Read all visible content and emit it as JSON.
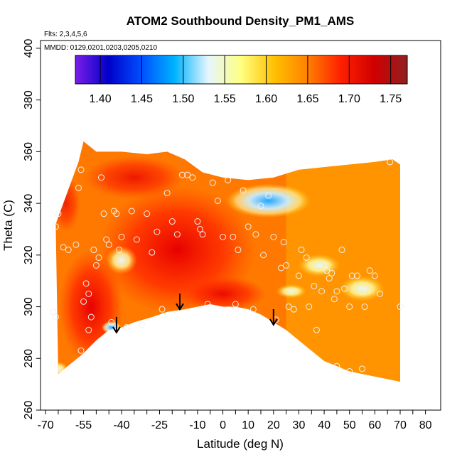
{
  "chart_data": {
    "type": "heatmap",
    "title": "ATOM2 Southbound Density_PM1_AMS",
    "flights_note": "Flts: 2,3,4,5,6",
    "dates_note": "MMDD: 0129,0201,0203,0205,0210",
    "xlabel": "Latitude (deg N)",
    "ylabel": "Theta (C)",
    "xlim": [
      -72,
      86
    ],
    "ylim": [
      260,
      403
    ],
    "x_ticks": [
      -70,
      -65,
      -60,
      -55,
      -50,
      -45,
      -40,
      -35,
      -30,
      -25,
      -20,
      -15,
      -10,
      -5,
      0,
      5,
      10,
      15,
      20,
      25,
      30,
      35,
      40,
      45,
      50,
      55,
      60,
      65,
      70,
      75,
      80
    ],
    "x_tick_labels": [
      "-70",
      "-55",
      "-40",
      "-25",
      "-10",
      "0",
      "10",
      "20",
      "30",
      "40",
      "50",
      "60",
      "70",
      "80"
    ],
    "x_tick_label_values": [
      -70,
      -55,
      -40,
      -25,
      -10,
      0,
      10,
      20,
      30,
      40,
      50,
      60,
      70,
      80
    ],
    "y_ticks": [
      260,
      280,
      300,
      320,
      340,
      360,
      380,
      400
    ],
    "y_tick_labels": [
      "260",
      "280",
      "300",
      "320",
      "340",
      "360",
      "380",
      "400"
    ],
    "colorbar": {
      "min": 1.37,
      "max": 1.77,
      "ticks": [
        1.4,
        1.45,
        1.5,
        1.55,
        1.6,
        1.65,
        1.7,
        1.75
      ],
      "tick_labels": [
        "1.40",
        "1.45",
        "1.50",
        "1.55",
        "1.60",
        "1.65",
        "1.70",
        "1.75"
      ],
      "colors": [
        "#7a1ee8",
        "#0000c8",
        "#0050ff",
        "#00b4ff",
        "#e6f6ff",
        "#ffff80",
        "#ffc000",
        "#ff8000",
        "#ff2000",
        "#d00000",
        "#902020"
      ]
    },
    "lower_boundary": [
      {
        "lat": -65,
        "theta": 274
      },
      {
        "lat": -60,
        "theta": 278
      },
      {
        "lat": -55,
        "theta": 282
      },
      {
        "lat": -50,
        "theta": 287
      },
      {
        "lat": -45,
        "theta": 291
      },
      {
        "lat": -40,
        "theta": 292
      },
      {
        "lat": -35,
        "theta": 294
      },
      {
        "lat": -28,
        "theta": 296
      },
      {
        "lat": -22,
        "theta": 298
      },
      {
        "lat": -15,
        "theta": 299
      },
      {
        "lat": -10,
        "theta": 300
      },
      {
        "lat": -5,
        "theta": 301
      },
      {
        "lat": 0,
        "theta": 300
      },
      {
        "lat": 5,
        "theta": 300
      },
      {
        "lat": 10,
        "theta": 299
      },
      {
        "lat": 15,
        "theta": 297
      },
      {
        "lat": 20,
        "theta": 294
      },
      {
        "lat": 25,
        "theta": 291
      },
      {
        "lat": 30,
        "theta": 287
      },
      {
        "lat": 35,
        "theta": 283
      },
      {
        "lat": 40,
        "theta": 279
      },
      {
        "lat": 45,
        "theta": 277
      },
      {
        "lat": 50,
        "theta": 275
      },
      {
        "lat": 55,
        "theta": 274
      },
      {
        "lat": 60,
        "theta": 273
      },
      {
        "lat": 65,
        "theta": 272
      },
      {
        "lat": 70,
        "theta": 271
      }
    ],
    "upper_boundary": [
      {
        "lat": -66,
        "theta": 332
      },
      {
        "lat": -63,
        "theta": 340
      },
      {
        "lat": -60,
        "theta": 348
      },
      {
        "lat": -57,
        "theta": 356
      },
      {
        "lat": -55,
        "theta": 364
      },
      {
        "lat": -50,
        "theta": 360
      },
      {
        "lat": -40,
        "theta": 360
      },
      {
        "lat": -30,
        "theta": 359
      },
      {
        "lat": -22,
        "theta": 360
      },
      {
        "lat": -15,
        "theta": 357
      },
      {
        "lat": -8,
        "theta": 352
      },
      {
        "lat": 0,
        "theta": 350
      },
      {
        "lat": 10,
        "theta": 349
      },
      {
        "lat": 20,
        "theta": 350
      },
      {
        "lat": 30,
        "theta": 353
      },
      {
        "lat": 40,
        "theta": 354
      },
      {
        "lat": 50,
        "theta": 355
      },
      {
        "lat": 60,
        "theta": 356
      },
      {
        "lat": 67,
        "theta": 357
      },
      {
        "lat": 70,
        "theta": 355
      }
    ],
    "regions": [
      {
        "name": "tropical-core",
        "lat": -18,
        "theta": 322,
        "value": 1.73
      },
      {
        "name": "southern-red",
        "lat": -52,
        "theta": 300,
        "value": 1.72
      },
      {
        "name": "northern-blue",
        "lat": 20,
        "theta": 342,
        "value": 1.5
      },
      {
        "name": "south-pole-blue",
        "lat": -44,
        "theta": 292,
        "value": 1.55
      },
      {
        "name": "northern-light",
        "lat": 55,
        "theta": 307,
        "value": 1.58
      },
      {
        "name": "mid-light",
        "lat": 38,
        "theta": 316,
        "value": 1.6
      }
    ],
    "arrows": [
      {
        "lat": -42,
        "theta": 290
      },
      {
        "lat": -17,
        "theta": 299
      },
      {
        "lat": 20,
        "theta": 293
      }
    ],
    "points": [
      {
        "lat": -67,
        "theta": 298
      },
      {
        "lat": -66,
        "theta": 296
      },
      {
        "lat": -65,
        "theta": 336
      },
      {
        "lat": -66,
        "theta": 331
      },
      {
        "lat": -63,
        "theta": 323
      },
      {
        "lat": -61,
        "theta": 322
      },
      {
        "lat": -58,
        "theta": 324
      },
      {
        "lat": -57,
        "theta": 346
      },
      {
        "lat": -56,
        "theta": 353
      },
      {
        "lat": -55,
        "theta": 302
      },
      {
        "lat": -54,
        "theta": 309
      },
      {
        "lat": -53,
        "theta": 305
      },
      {
        "lat": -52,
        "theta": 296
      },
      {
        "lat": -51,
        "theta": 322
      },
      {
        "lat": -50,
        "theta": 316
      },
      {
        "lat": -49,
        "theta": 319
      },
      {
        "lat": -48,
        "theta": 350
      },
      {
        "lat": -47,
        "theta": 336
      },
      {
        "lat": -46,
        "theta": 326
      },
      {
        "lat": -45,
        "theta": 324
      },
      {
        "lat": -43,
        "theta": 337
      },
      {
        "lat": -42,
        "theta": 336
      },
      {
        "lat": -41,
        "theta": 322
      },
      {
        "lat": -40,
        "theta": 327
      },
      {
        "lat": -38,
        "theta": 292
      },
      {
        "lat": -36,
        "theta": 337
      },
      {
        "lat": -34,
        "theta": 326
      },
      {
        "lat": -32,
        "theta": 293
      },
      {
        "lat": -30,
        "theta": 336
      },
      {
        "lat": -28,
        "theta": 321
      },
      {
        "lat": -26,
        "theta": 329
      },
      {
        "lat": -24,
        "theta": 299
      },
      {
        "lat": -22,
        "theta": 344
      },
      {
        "lat": -20,
        "theta": 333
      },
      {
        "lat": -18,
        "theta": 328
      },
      {
        "lat": -16,
        "theta": 351
      },
      {
        "lat": -14,
        "theta": 351
      },
      {
        "lat": -12,
        "theta": 350
      },
      {
        "lat": -10,
        "theta": 333
      },
      {
        "lat": -9,
        "theta": 330
      },
      {
        "lat": -8,
        "theta": 328
      },
      {
        "lat": -6,
        "theta": 301
      },
      {
        "lat": -4,
        "theta": 348
      },
      {
        "lat": -2,
        "theta": 341
      },
      {
        "lat": 0,
        "theta": 327
      },
      {
        "lat": 2,
        "theta": 349
      },
      {
        "lat": 4,
        "theta": 327
      },
      {
        "lat": 5,
        "theta": 301
      },
      {
        "lat": 6,
        "theta": 322
      },
      {
        "lat": 8,
        "theta": 345
      },
      {
        "lat": 10,
        "theta": 331
      },
      {
        "lat": 12,
        "theta": 299
      },
      {
        "lat": 13,
        "theta": 328
      },
      {
        "lat": 15,
        "theta": 339
      },
      {
        "lat": 16,
        "theta": 320
      },
      {
        "lat": 18,
        "theta": 343
      },
      {
        "lat": 20,
        "theta": 327
      },
      {
        "lat": 21,
        "theta": 295
      },
      {
        "lat": 23,
        "theta": 315
      },
      {
        "lat": 24,
        "theta": 325
      },
      {
        "lat": 25,
        "theta": 316
      },
      {
        "lat": 26,
        "theta": 300
      },
      {
        "lat": 28,
        "theta": 299
      },
      {
        "lat": 30,
        "theta": 312
      },
      {
        "lat": 31,
        "theta": 322
      },
      {
        "lat": 33,
        "theta": 319
      },
      {
        "lat": 34,
        "theta": 300
      },
      {
        "lat": 36,
        "theta": 308
      },
      {
        "lat": 37,
        "theta": 291
      },
      {
        "lat": 39,
        "theta": 306
      },
      {
        "lat": 40,
        "theta": 316
      },
      {
        "lat": 41,
        "theta": 314
      },
      {
        "lat": 42,
        "theta": 311
      },
      {
        "lat": 43,
        "theta": 313
      },
      {
        "lat": 44,
        "theta": 303
      },
      {
        "lat": 45,
        "theta": 306
      },
      {
        "lat": 47,
        "theta": 322
      },
      {
        "lat": 48,
        "theta": 307
      },
      {
        "lat": 50,
        "theta": 300
      },
      {
        "lat": 51,
        "theta": 312
      },
      {
        "lat": 53,
        "theta": 312
      },
      {
        "lat": 55,
        "theta": 306
      },
      {
        "lat": 56,
        "theta": 300
      },
      {
        "lat": 57,
        "theta": 306
      },
      {
        "lat": 58,
        "theta": 314
      },
      {
        "lat": 60,
        "theta": 312
      },
      {
        "lat": 62,
        "theta": 305
      },
      {
        "lat": 66,
        "theta": 356
      },
      {
        "lat": 70,
        "theta": 300
      },
      {
        "lat": 50,
        "theta": 275
      },
      {
        "lat": 55,
        "theta": 276
      },
      {
        "lat": 45,
        "theta": 277
      },
      {
        "lat": -56,
        "theta": 283
      },
      {
        "lat": -53,
        "theta": 291
      },
      {
        "lat": -44,
        "theta": 294
      }
    ]
  }
}
